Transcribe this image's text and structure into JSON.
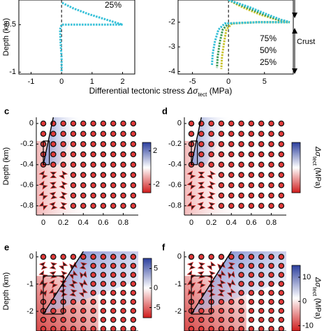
{
  "chart_data": [
    {
      "type": "line",
      "ylabel": "Depth (km)",
      "xlabel": {
        "text": "Differential tectonic stress",
        "symbol": "Δσ",
        "subscript": "tect",
        "unit": "(MPa)"
      },
      "xlim": [
        -1.4,
        2.4
      ],
      "xticks": [
        -1,
        0,
        1,
        2
      ],
      "ylim": [
        -1.02,
        -0.24
      ],
      "yticks": [
        -1,
        -0.5
      ],
      "series": [
        {
          "name": "25%",
          "color": "#35c0d8",
          "x": [
            0.02,
            0.4,
            0.9,
            1.4,
            1.8,
            2.0,
            1.0,
            0.0,
            -0.05,
            -0.03,
            0.0,
            0.0
          ],
          "values": [
            -0.27,
            -0.33,
            -0.39,
            -0.44,
            -0.48,
            -0.5,
            -0.5,
            -0.5,
            -0.55,
            -0.7,
            -0.85,
            -1.0
          ]
        }
      ]
    },
    {
      "type": "line",
      "xlim": [
        -7,
        9
      ],
      "xticks": [
        -5,
        0,
        5
      ],
      "ylim": [
        -4.1,
        -1.1
      ],
      "yticks": [
        -4,
        -3,
        -2
      ],
      "annotation": "Crust",
      "series": [
        {
          "name": "75%",
          "color": "#c9c22a",
          "x": [
            0,
            2,
            4.5,
            6.8,
            8,
            8.5,
            4,
            0.5,
            -0.3,
            -0.6,
            -0.9,
            -1
          ],
          "values": [
            -1.1,
            -1.4,
            -1.7,
            -1.9,
            -1.98,
            -2,
            -2,
            -2.05,
            -2.3,
            -2.8,
            -3.4,
            -3.9
          ]
        },
        {
          "name": "50%",
          "color": "#3f9b55",
          "x": [
            0,
            2.5,
            5,
            7,
            8.2,
            8.5,
            4,
            0,
            -0.8,
            -1.2,
            -1.5,
            -1.6
          ],
          "values": [
            -1.1,
            -1.4,
            -1.7,
            -1.9,
            -1.98,
            -2,
            -2,
            -2.05,
            -2.3,
            -2.8,
            -3.4,
            -3.85
          ]
        },
        {
          "name": "25%",
          "color": "#33bfd6",
          "x": [
            0,
            3,
            5.5,
            7.3,
            8.3,
            8.5,
            4,
            -0.5,
            -1.4,
            -1.9,
            -2.2,
            -2.3
          ],
          "values": [
            -1.1,
            -1.4,
            -1.7,
            -1.9,
            -1.98,
            -2,
            -2,
            -2.05,
            -2.3,
            -2.8,
            -3.3,
            -3.75
          ]
        }
      ]
    },
    {
      "type": "field",
      "panel": "c",
      "ylabel": "Depth (km)",
      "xlim": [
        -0.07,
        0.95
      ],
      "xticks": [
        0,
        0.2,
        0.4,
        0.6,
        0.8
      ],
      "ylim": [
        -0.89,
        0.06
      ],
      "yticks": [
        -0.8,
        -0.6,
        -0.4,
        -0.2,
        0
      ],
      "clim": [
        -3,
        3
      ],
      "cticks": [
        2,
        -2
      ]
    },
    {
      "type": "field",
      "panel": "d",
      "xlim": [
        -0.07,
        0.95
      ],
      "xticks": [
        0,
        0.2,
        0.4,
        0.6,
        0.8
      ],
      "ylim": [
        -0.89,
        0.06
      ],
      "yticks": [
        -0.8,
        -0.6,
        -0.4,
        -0.2,
        0
      ],
      "clim": [
        -3,
        3
      ],
      "cticks": [],
      "colorbar_label": {
        "symbol": "Δσ",
        "subscript": "tect",
        "unit": "(MPa)"
      }
    },
    {
      "type": "field",
      "panel": "e",
      "ylabel": "Depth (km)",
      "xlim": [
        -0.07,
        0.95
      ],
      "xticks": [],
      "ylim": [
        -2.72,
        0.2
      ],
      "yticks": [
        -2,
        -1,
        0
      ],
      "clim": [
        -7.6,
        7.6
      ],
      "cticks": [
        5,
        0,
        -5
      ]
    },
    {
      "type": "field",
      "panel": "f",
      "xlim": [
        -0.07,
        0.95
      ],
      "xticks": [],
      "ylim": [
        -2.72,
        0.2
      ],
      "yticks": [
        -2,
        -1,
        0
      ],
      "clim": [
        -12.2,
        14.9
      ],
      "cticks": [
        10,
        0,
        -10
      ],
      "colorbar_label": {
        "symbol": "Δσ",
        "subscript": "tect",
        "unit": "(MPa)"
      }
    }
  ]
}
